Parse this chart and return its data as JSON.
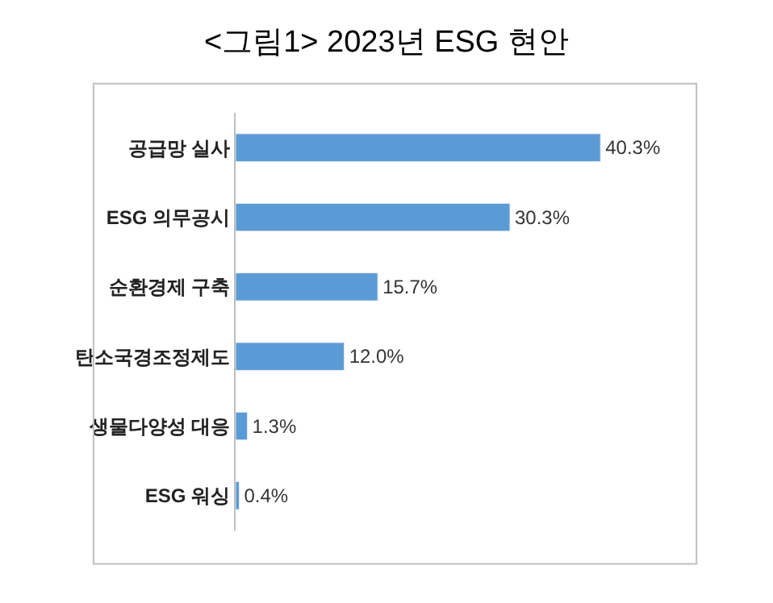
{
  "chart_data": {
    "type": "bar",
    "orientation": "horizontal",
    "title": "<그림1> 2023년 ESG 현안",
    "categories": [
      "공급망 실사",
      "ESG 의무공시",
      "순환경제 구축",
      "탄소국경조정제도",
      "생물다양성 대응",
      "ESG 워싱"
    ],
    "values": [
      40.3,
      30.3,
      15.7,
      12.0,
      1.3,
      0.4
    ],
    "value_labels": [
      "40.3%",
      "30.3%",
      "15.7%",
      "12.0%",
      "1.3%",
      "0.4%"
    ],
    "color": "#5b9bd5"
  }
}
